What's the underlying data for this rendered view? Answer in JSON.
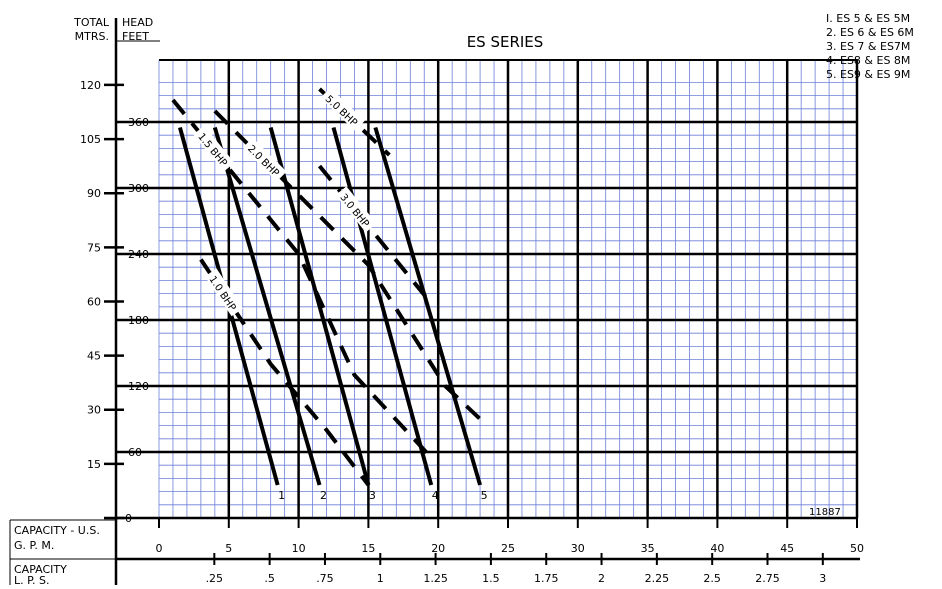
{
  "title": "ES SERIES",
  "drawing_number": "11887",
  "legend": [
    "I. ES 5 & ES 5M",
    "2. ES 6 & ES 6M",
    "3. ES 7 & ES7M",
    "4. ES8 & ES 8M",
    "5. ES9 & ES 9M"
  ],
  "labels": {
    "total_mtrs_1": "TOTAL",
    "total_mtrs_2": "MTRS.",
    "head_feet_1": "HEAD",
    "head_feet_2": "FEET",
    "gpm_1": "CAPACITY - U.S.",
    "gpm_2": "G. P. M.",
    "lps_1": "CAPACITY",
    "lps_2": "L. P. S."
  },
  "chart_data": {
    "type": "line",
    "title": "ES SERIES",
    "xlabel": "CAPACITY - U.S. G. P. M.",
    "ylabel": "HEAD FEET",
    "xlim": [
      0,
      50
    ],
    "ylim": [
      0,
      400
    ],
    "grid": true,
    "x_ticks": [
      "0",
      "5",
      "10",
      "15",
      "20",
      "25",
      "30",
      "35",
      "40",
      "45",
      "50"
    ],
    "y_ticks_feet": [
      "60",
      "120",
      "180",
      "240",
      "300",
      "360"
    ],
    "y_ticks_meters": [
      "0",
      "15",
      "30",
      "45",
      "60",
      "75",
      "90",
      "105",
      "120"
    ],
    "x_ticks_lps": [
      ".25",
      ".5",
      ".75",
      "1",
      "1.25",
      "1.5",
      "1.75",
      "2",
      "2.25",
      "2.5",
      "2.75",
      "3"
    ],
    "series": [
      {
        "name": "1",
        "x": [
          1.5,
          8.5
        ],
        "y": [
          355,
          30
        ]
      },
      {
        "name": "2",
        "x": [
          4,
          11.5
        ],
        "y": [
          355,
          30
        ]
      },
      {
        "name": "3",
        "x": [
          8,
          15
        ],
        "y": [
          355,
          30
        ]
      },
      {
        "name": "4",
        "x": [
          12.5,
          19.5
        ],
        "y": [
          355,
          30
        ]
      },
      {
        "name": "5",
        "x": [
          15.5,
          23
        ],
        "y": [
          355,
          30
        ]
      }
    ],
    "bhp_lines": [
      {
        "label": "5.0 BHP",
        "x": [
          11.5,
          16.5
        ],
        "y": [
          390,
          330
        ]
      },
      {
        "label": "3.0 BHP",
        "x": [
          11.5,
          19.5
        ],
        "y": [
          320,
          195
        ]
      },
      {
        "label": "2.0 BHP",
        "x": [
          4,
          15,
          20.5,
          23
        ],
        "y": [
          370,
          230,
          120,
          90
        ]
      },
      {
        "label": "1.5 BHP",
        "x": [
          1,
          10,
          14,
          19.5
        ],
        "y": [
          380,
          240,
          130,
          55
        ]
      },
      {
        "label": "1.0 BHP",
        "x": [
          3,
          8,
          12,
          15
        ],
        "y": [
          235,
          140,
          80,
          30
        ]
      }
    ]
  }
}
